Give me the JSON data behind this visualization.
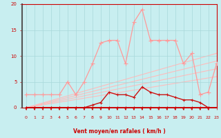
{
  "xlabel": "Vent moyen/en rafales ( km/h )",
  "xlim": [
    -0.5,
    23
  ],
  "ylim": [
    -0.5,
    20
  ],
  "ylim_plot": [
    0,
    20
  ],
  "yticks": [
    0,
    5,
    10,
    15,
    20
  ],
  "xticks": [
    0,
    1,
    2,
    3,
    4,
    5,
    6,
    7,
    8,
    9,
    10,
    11,
    12,
    13,
    14,
    15,
    16,
    17,
    18,
    19,
    20,
    21,
    22,
    23
  ],
  "bg_color": "#c8eef0",
  "grid_color": "#a8d8da",
  "fan_lines": [
    {
      "x": [
        0,
        23
      ],
      "y": [
        0,
        6.0
      ],
      "color": "#ffbbbb",
      "lw": 0.8
    },
    {
      "x": [
        0,
        23
      ],
      "y": [
        0,
        7.5
      ],
      "color": "#ffbbbb",
      "lw": 0.8
    },
    {
      "x": [
        0,
        23
      ],
      "y": [
        0,
        9.0
      ],
      "color": "#ffbbbb",
      "lw": 0.8
    },
    {
      "x": [
        0,
        23
      ],
      "y": [
        0,
        10.5
      ],
      "color": "#ffbbbb",
      "lw": 0.8
    }
  ],
  "zigzag": {
    "x": [
      0,
      1,
      2,
      3,
      4,
      5,
      6,
      7,
      8,
      9,
      10,
      11,
      12,
      13,
      14,
      15,
      16,
      17,
      18,
      19,
      20,
      21,
      22,
      23
    ],
    "y": [
      2.5,
      2.5,
      2.5,
      2.5,
      2.5,
      5.0,
      2.5,
      5.0,
      8.5,
      12.5,
      13.0,
      13.0,
      8.5,
      16.5,
      19.0,
      13.0,
      13.0,
      13.0,
      13.0,
      8.5,
      10.5,
      2.5,
      3.0,
      8.5
    ],
    "color": "#ff9999",
    "lw": 0.9,
    "marker": "+",
    "ms": 4.0
  },
  "mid_line": {
    "x": [
      0,
      1,
      2,
      3,
      4,
      5,
      6,
      7,
      8,
      9,
      10,
      11,
      12,
      13,
      14,
      15,
      16,
      17,
      18,
      19,
      20,
      21,
      22,
      23
    ],
    "y": [
      0.0,
      0.0,
      0.0,
      0.0,
      0.0,
      0.0,
      0.0,
      0.0,
      0.5,
      1.0,
      3.0,
      2.5,
      2.5,
      2.0,
      4.0,
      3.0,
      2.5,
      2.5,
      2.0,
      1.5,
      1.5,
      1.0,
      0.0,
      0.0
    ],
    "color": "#cc1111",
    "lw": 1.0,
    "marker": "+",
    "ms": 3.5
  },
  "base_line": {
    "x": [
      0,
      1,
      2,
      3,
      4,
      5,
      6,
      7,
      8,
      9,
      10,
      11,
      12,
      13,
      14,
      15,
      16,
      17,
      18,
      19,
      20,
      21,
      22,
      23
    ],
    "y": [
      0,
      0,
      0,
      0,
      0,
      0,
      0,
      0,
      0,
      0,
      0,
      0,
      0,
      0,
      0,
      0,
      0,
      0,
      0,
      0,
      0,
      0,
      0,
      0
    ],
    "color": "#cc0000",
    "lw": 2.0,
    "marker": "+",
    "ms": 3.0
  },
  "arrows_x": [
    0,
    1,
    2,
    3,
    4,
    5,
    6,
    7,
    8,
    9,
    10,
    11,
    12,
    13,
    14,
    15,
    16,
    17,
    18,
    19,
    20,
    21,
    22
  ],
  "arrow_color": "#cc0000",
  "tick_color": "#cc0000",
  "spine_left_color": "#555555"
}
